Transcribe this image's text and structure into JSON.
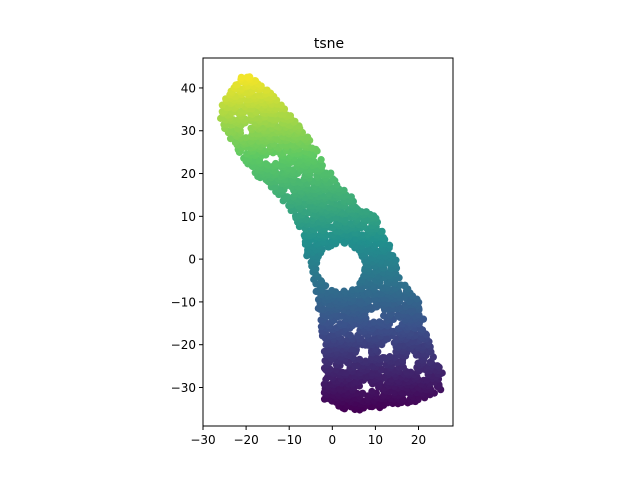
{
  "chart_data": {
    "type": "scatter",
    "title": "tsne",
    "xlabel": "",
    "ylabel": "",
    "xlim": [
      -30,
      28
    ],
    "ylim": [
      -39,
      47
    ],
    "x_ticks": [
      -30,
      -20,
      -10,
      0,
      10,
      20
    ],
    "y_ticks": [
      -30,
      -20,
      -10,
      0,
      10,
      20,
      30,
      40
    ],
    "x_tick_labels": [
      "−30",
      "−20",
      "−10",
      "0",
      "10",
      "20"
    ],
    "y_tick_labels": [
      "−30",
      "−20",
      "−10",
      "0",
      "10",
      "20",
      "30",
      "40"
    ],
    "colormap": "viridis",
    "color_encodes": "y (sequence order along the band)",
    "colormap_stops": [
      "#440154",
      "#3b528b",
      "#21908d",
      "#5dc963",
      "#fde725"
    ],
    "grid": false,
    "legend": "none",
    "point_cloud_description": "dense band of points from lower right to upper left",
    "band_outline": [
      [
        -26,
        35.5
      ],
      [
        -23,
        41
      ],
      [
        -20,
        43.5
      ],
      [
        -18,
        42
      ],
      [
        -14,
        39
      ],
      [
        -10,
        34
      ],
      [
        -6,
        29
      ],
      [
        -2,
        23
      ],
      [
        2,
        17
      ],
      [
        6,
        13
      ],
      [
        10,
        10
      ],
      [
        13,
        4
      ],
      [
        15,
        0
      ],
      [
        16,
        -4
      ],
      [
        19,
        -8
      ],
      [
        21,
        -12
      ],
      [
        22,
        -18
      ],
      [
        24,
        -24
      ],
      [
        26,
        -27
      ],
      [
        26,
        -30
      ],
      [
        22,
        -33
      ],
      [
        16,
        -34
      ],
      [
        10,
        -35
      ],
      [
        4,
        -35.5
      ],
      [
        1,
        -34.5
      ],
      [
        -2,
        -33
      ],
      [
        -2,
        -26
      ],
      [
        -2,
        -20
      ],
      [
        -3,
        -13
      ],
      [
        -4,
        -7
      ],
      [
        -5,
        -2
      ],
      [
        -7,
        4
      ],
      [
        -8,
        8
      ],
      [
        -11,
        13
      ],
      [
        -15,
        17
      ],
      [
        -18,
        20
      ],
      [
        -21,
        24
      ],
      [
        -23,
        27
      ],
      [
        -25,
        30
      ],
      [
        -26,
        33
      ]
    ],
    "holes": [
      {
        "x": 2,
        "y": -2,
        "r": 5.5
      },
      {
        "x": -14,
        "y": 23.5,
        "r": 1.3
      },
      {
        "x": -20,
        "y": 30.5,
        "r": 1.1
      },
      {
        "x": -10,
        "y": 15.5,
        "r": 0.9
      },
      {
        "x": -7.5,
        "y": 19,
        "r": 0.8
      },
      {
        "x": 10,
        "y": -13,
        "r": 1.5
      },
      {
        "x": 15,
        "y": -15,
        "r": 1.2
      },
      {
        "x": 7,
        "y": -22,
        "r": 1.5
      },
      {
        "x": 13,
        "y": -21,
        "r": 1.6
      },
      {
        "x": 18,
        "y": -24,
        "r": 1.6
      },
      {
        "x": 8,
        "y": -30,
        "r": 1.4
      },
      {
        "x": 21,
        "y": -27,
        "r": 1.2
      },
      {
        "x": 2.5,
        "y": -25.5,
        "r": 0.9
      },
      {
        "x": 5,
        "y": -17,
        "r": 0.8
      }
    ]
  }
}
